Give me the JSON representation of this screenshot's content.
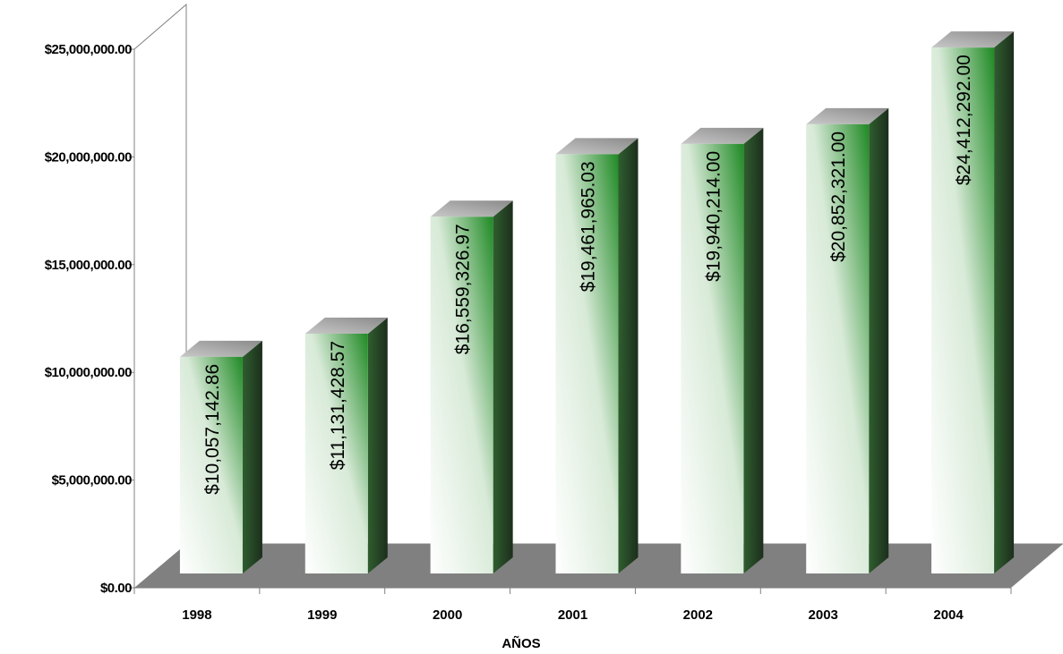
{
  "chart_data": {
    "type": "bar",
    "categories": [
      "1998",
      "1999",
      "2000",
      "2001",
      "2002",
      "2003",
      "2004"
    ],
    "values": [
      10057142.86,
      11131428.57,
      16559326.97,
      19461965.03,
      19940214.0,
      20852321.0,
      24412292.0
    ],
    "data_labels": [
      "$10,057,142.86",
      "$11,131,428.57",
      "$16,559,326.97",
      "$19,461,965.03",
      "$19,940,214.00",
      "$20,852,321.00",
      "$24,412,292.00"
    ],
    "y_ticks": [
      0,
      5000000,
      10000000,
      15000000,
      20000000,
      25000000
    ],
    "y_tick_labels": [
      "$0.00",
      "$5,000,000.00",
      "$10,000,000.00",
      "$15,000,000.00",
      "$20,000,000.00",
      "$25,000,000.00"
    ],
    "ylim": [
      0,
      25000000
    ],
    "xlabel": "AÑOS",
    "ylabel": "",
    "title": "",
    "grid": false,
    "style": "3d",
    "colors": {
      "bar_front_top": "#1f8a24",
      "bar_front_bottom": "#ffffff",
      "bar_side": "#2d4a2d",
      "bar_top": "#a9a9a9",
      "floor": "#808080",
      "axis": "#808080"
    }
  }
}
